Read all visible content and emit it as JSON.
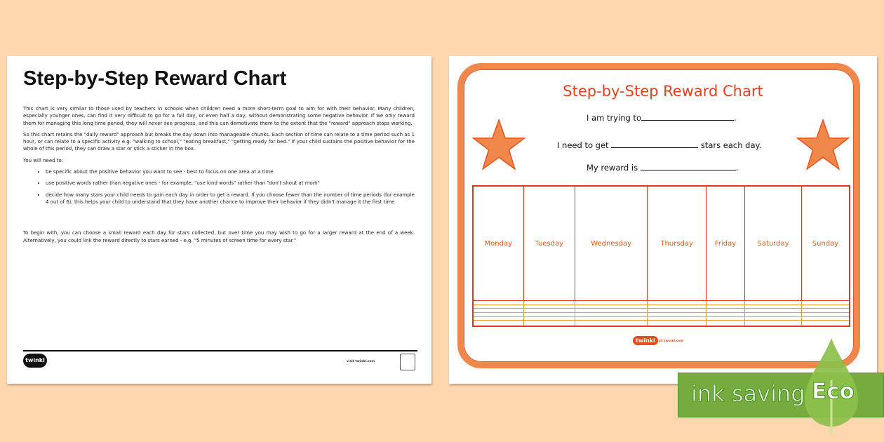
{
  "left_page": {
    "title": "Step-by-Step Reward Chart",
    "paragraphs": [
      "This chart is very similar to those used by teachers in schools when children need a more short-term goal to aim for with their behavior. Many children, especially younger ones, can find it very difficult to go for a full day, or even half a day, without demonstrating some negative behavior. If we only reward them for managing this long time period, they will never see progress, and this can demotivate them to the extent that the \"reward\" approach stops working.",
      "So this chart retains the \"daily reward\" approach but breaks the day down into manageable chunks. Each section of time can relate to a time period such as 1 hour, or can relate to a specific activity e.g. \"walking to school,\" \"eating breakfast,\" \"getting ready for bed.\" If your child sustains the positive behavior for the whole of this period, they can draw a star or stick a sticker in the box.",
      "You will need to:"
    ],
    "bullets": [
      "be specific about the positive behavior you want to see - best to focus on one area at a time",
      "use positive words rather than negative ones - for example, \"use kind words\" rather than \"don't shout at mom\"",
      "decide how many stars your child needs to gain each day in order to get a reward. If you choose fewer than the number of time periods (for example 4 out of 6), this helps your child to understand that they have another chance to improve their behavior if they didn't manage it the first time"
    ],
    "closing": "To begin with, you can choose a small reward each day for stars collected, but over time you may wish to go for a larger reward at the end of a week. Alternatively, you could link the reward directly to stars earned - e.g. \"5 minutes of screen time for every star.\"",
    "footer_logo": "twinkl",
    "footer_url": "visit twinkl.com"
  },
  "right_page": {
    "title": "Step-by-Step Reward Chart",
    "line1": "I am trying to",
    "line2a": "I need to get",
    "line2b": "stars each day.",
    "line3": "My reward is",
    "days": [
      "Monday",
      "Tuesday",
      "Wednesday",
      "Thursday",
      "Friday",
      "Saturday",
      "Sunday"
    ],
    "footer_logo": "twinkl",
    "footer_url": "visit twinkl.com",
    "colors": {
      "frame": "#f0874b",
      "title": "#e8401c",
      "star": "#f0874b"
    }
  },
  "eco_badge": {
    "label": "ink saving",
    "tag": "Eco",
    "color": "#76ab3f"
  }
}
